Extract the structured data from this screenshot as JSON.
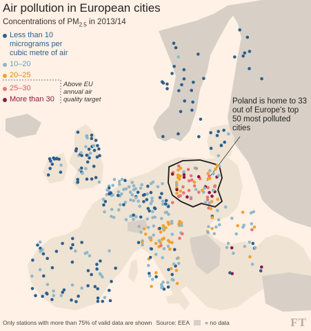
{
  "header": {
    "title": "Air pollution in European cities",
    "subtitle_main": "Concentrations of PM",
    "subtitle_sub": "2.5",
    "subtitle_tail": " in 2013/14"
  },
  "legend": {
    "items": [
      {
        "label": "Less than 10 micrograms per cubic metre of air",
        "color": "#2b5f8f"
      },
      {
        "label": "10–20",
        "color": "#8fb8c9"
      },
      {
        "label": "20–25",
        "color": "#f2a12c"
      },
      {
        "label": "25–30",
        "color": "#e8747a"
      },
      {
        "label": "More than 30",
        "color": "#8b1a3a"
      }
    ],
    "eu_target_note": "Above EU annual air quality target"
  },
  "annotation": {
    "text": "Poland is home to 33 out of Europe's top 50 most polluted cities"
  },
  "footer": {
    "note": "Only stations with more than 75% of valid data are shown",
    "source": "Source: EEA",
    "nodata_label": "= no data"
  },
  "logo": "FT",
  "colors": {
    "background": "#fff1e5",
    "land_data": "#efe3d3",
    "land_nodata": "#d8d0c6",
    "sea": "#fff1e5",
    "poland_outline": "#1a1a1a"
  }
}
